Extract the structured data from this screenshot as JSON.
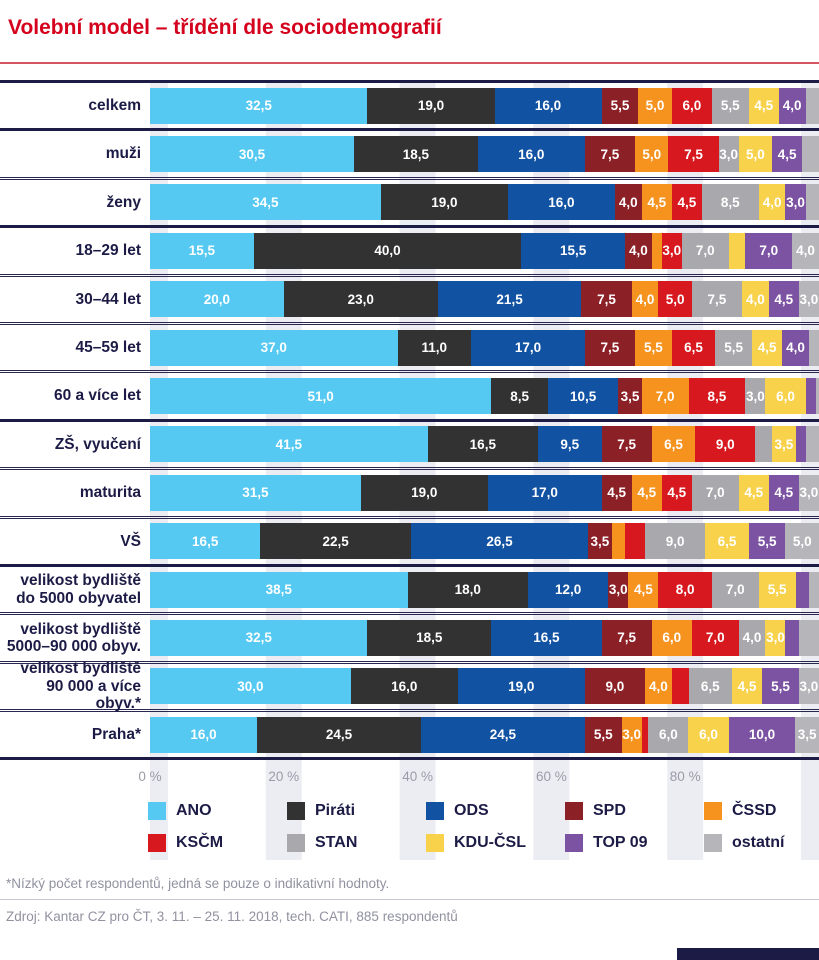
{
  "title": "Volební model – třídění dle sociodemografií",
  "footnote": "*Nízký počet respondentů, jedná se pouze o indikativní hodnoty.",
  "source": "Zdroj: Kantar CZ pro ČT, 3. 11. – 25. 11. 2018, tech. CATI, 885 respondentů",
  "colors": {
    "title_red": "#D4021D",
    "navy_text": "#1B1B46",
    "stripe": "#ECECF3",
    "axis_label": "#9C9CA8",
    "footnote_gray": "#9191A0"
  },
  "chart_data": {
    "type": "bar",
    "variant": "stacked-horizontal",
    "unit": "%",
    "xlim": [
      0,
      100
    ],
    "grid": "vertical-stripes",
    "legend_position": "bottom",
    "x_ticks": [
      {
        "value": 0,
        "label": "0 %"
      },
      {
        "value": 20,
        "label": "20 %"
      },
      {
        "value": 40,
        "label": "40 %"
      },
      {
        "value": 60,
        "label": "60 %"
      },
      {
        "value": 80,
        "label": "80 %"
      }
    ],
    "series": [
      {
        "name": "ANO",
        "slug": "ano",
        "color": "#55C9F2"
      },
      {
        "name": "Piráti",
        "slug": "pirati",
        "color": "#323232"
      },
      {
        "name": "ODS",
        "slug": "ods",
        "color": "#1152A2"
      },
      {
        "name": "SPD",
        "slug": "spd",
        "color": "#8C2027"
      },
      {
        "name": "ČSSD",
        "slug": "cssd",
        "color": "#F6921E"
      },
      {
        "name": "KSČM",
        "slug": "kscm",
        "color": "#D7181E"
      },
      {
        "name": "STAN",
        "slug": "stan",
        "color": "#A9A9AD"
      },
      {
        "name": "KDU-ČSL",
        "slug": "kdu-csl",
        "color": "#F9D24B"
      },
      {
        "name": "TOP 09",
        "slug": "top-09",
        "color": "#7C52A2"
      },
      {
        "name": "ostatní",
        "slug": "ostatni",
        "color": "#B6B6BA"
      }
    ],
    "rows": [
      {
        "label_lines": [
          "celkem"
        ],
        "group_end": true,
        "values": [
          32.5,
          19.0,
          16.0,
          5.5,
          5.0,
          6.0,
          5.5,
          4.5,
          4.0,
          2.0
        ],
        "value_labels": [
          "32,5",
          "19,0",
          "16,0",
          "5,5",
          "5,0",
          "6,0",
          "5,5",
          "4,5",
          "4,0",
          ""
        ]
      },
      {
        "label_lines": [
          "muži"
        ],
        "group_end": false,
        "values": [
          30.5,
          18.5,
          16.0,
          7.5,
          5.0,
          7.5,
          3.0,
          5.0,
          4.5,
          2.5
        ],
        "value_labels": [
          "30,5",
          "18,5",
          "16,0",
          "7,5",
          "5,0",
          "7,5",
          "3,0",
          "5,0",
          "4,5",
          ""
        ]
      },
      {
        "label_lines": [
          "ženy"
        ],
        "group_end": true,
        "values": [
          34.5,
          19.0,
          16.0,
          4.0,
          4.5,
          4.5,
          8.5,
          4.0,
          3.0,
          2.0
        ],
        "value_labels": [
          "34,5",
          "19,0",
          "16,0",
          "4,0",
          "4,5",
          "4,5",
          "8,5",
          "4,0",
          "3,0",
          ""
        ]
      },
      {
        "label_lines": [
          "18–29 let"
        ],
        "group_end": false,
        "values": [
          15.5,
          40.0,
          15.5,
          4.0,
          1.5,
          3.0,
          7.0,
          2.5,
          7.0,
          4.0
        ],
        "value_labels": [
          "15,5",
          "40,0",
          "15,5",
          "4,0",
          "",
          "3,0",
          "7,0",
          "",
          "7,0",
          "4,0"
        ]
      },
      {
        "label_lines": [
          "30–44 let"
        ],
        "group_end": false,
        "values": [
          20.0,
          23.0,
          21.5,
          7.5,
          4.0,
          5.0,
          7.5,
          4.0,
          4.5,
          3.0
        ],
        "value_labels": [
          "20,0",
          "23,0",
          "21,5",
          "7,5",
          "4,0",
          "5,0",
          "7,5",
          "4,0",
          "4,5",
          "3,0"
        ]
      },
      {
        "label_lines": [
          "45–59 let"
        ],
        "group_end": false,
        "values": [
          37.0,
          11.0,
          17.0,
          7.5,
          5.5,
          6.5,
          5.5,
          4.5,
          4.0,
          1.5
        ],
        "value_labels": [
          "37,0",
          "11,0",
          "17,0",
          "7,5",
          "5,5",
          "6,5",
          "5,5",
          "4,5",
          "4,0",
          ""
        ]
      },
      {
        "label_lines": [
          "60 a více let"
        ],
        "group_end": true,
        "values": [
          51.0,
          8.5,
          10.5,
          3.5,
          7.0,
          8.5,
          3.0,
          6.0,
          1.5,
          0.5
        ],
        "value_labels": [
          "51,0",
          "8,5",
          "10,5",
          "3,5",
          "7,0",
          "8,5",
          "3,0",
          "6,0",
          "",
          ""
        ]
      },
      {
        "label_lines": [
          "ZŠ, vyučení"
        ],
        "group_end": false,
        "values": [
          41.5,
          16.5,
          9.5,
          7.5,
          6.5,
          9.0,
          2.5,
          3.5,
          1.5,
          2.0
        ],
        "value_labels": [
          "41,5",
          "16,5",
          "9,5",
          "7,5",
          "6,5",
          "9,0",
          "",
          "3,5",
          "",
          ""
        ]
      },
      {
        "label_lines": [
          "maturita"
        ],
        "group_end": false,
        "values": [
          31.5,
          19.0,
          17.0,
          4.5,
          4.5,
          4.5,
          7.0,
          4.5,
          4.5,
          3.0
        ],
        "value_labels": [
          "31,5",
          "19,0",
          "17,0",
          "4,5",
          "4,5",
          "4,5",
          "7,0",
          "4,5",
          "4,5",
          "3,0"
        ]
      },
      {
        "label_lines": [
          "VŠ"
        ],
        "group_end": true,
        "values": [
          16.5,
          22.5,
          26.5,
          3.5,
          2.0,
          3.0,
          9.0,
          6.5,
          5.5,
          5.0
        ],
        "value_labels": [
          "16,5",
          "22,5",
          "26,5",
          "3,5",
          "",
          "",
          "9,0",
          "6,5",
          "5,5",
          "5,0"
        ]
      },
      {
        "label_lines": [
          "velikost bydliště",
          "do 5000 obyvatel"
        ],
        "group_end": false,
        "values": [
          38.5,
          18.0,
          12.0,
          3.0,
          4.5,
          8.0,
          7.0,
          5.5,
          2.0,
          1.5
        ],
        "value_labels": [
          "38,5",
          "18,0",
          "12,0",
          "3,0",
          "4,5",
          "8,0",
          "7,0",
          "5,5",
          "",
          ""
        ]
      },
      {
        "label_lines": [
          "velikost bydliště",
          "5000–90 000 obyv."
        ],
        "group_end": false,
        "values": [
          32.5,
          18.5,
          16.5,
          7.5,
          6.0,
          7.0,
          4.0,
          3.0,
          2.0,
          3.0
        ],
        "value_labels": [
          "32,5",
          "18,5",
          "16,5",
          "7,5",
          "6,0",
          "7,0",
          "4,0",
          "3,0",
          "",
          ""
        ]
      },
      {
        "label_lines": [
          "velikost bydliště",
          "90 000 a více obyv.*"
        ],
        "group_end": false,
        "values": [
          30.0,
          16.0,
          19.0,
          9.0,
          4.0,
          2.5,
          6.5,
          4.5,
          5.5,
          3.0
        ],
        "value_labels": [
          "30,0",
          "16,0",
          "19,0",
          "9,0",
          "4,0",
          "",
          "6,5",
          "4,5",
          "5,5",
          "3,0"
        ]
      },
      {
        "label_lines": [
          "Praha*"
        ],
        "group_end": true,
        "values": [
          16.0,
          24.5,
          24.5,
          5.5,
          3.0,
          1.0,
          6.0,
          6.0,
          10.0,
          3.5
        ],
        "value_labels": [
          "16,0",
          "24,5",
          "24,5",
          "5,5",
          "3,0",
          "",
          "6,0",
          "6,0",
          "10,0",
          "3,5"
        ]
      }
    ]
  }
}
